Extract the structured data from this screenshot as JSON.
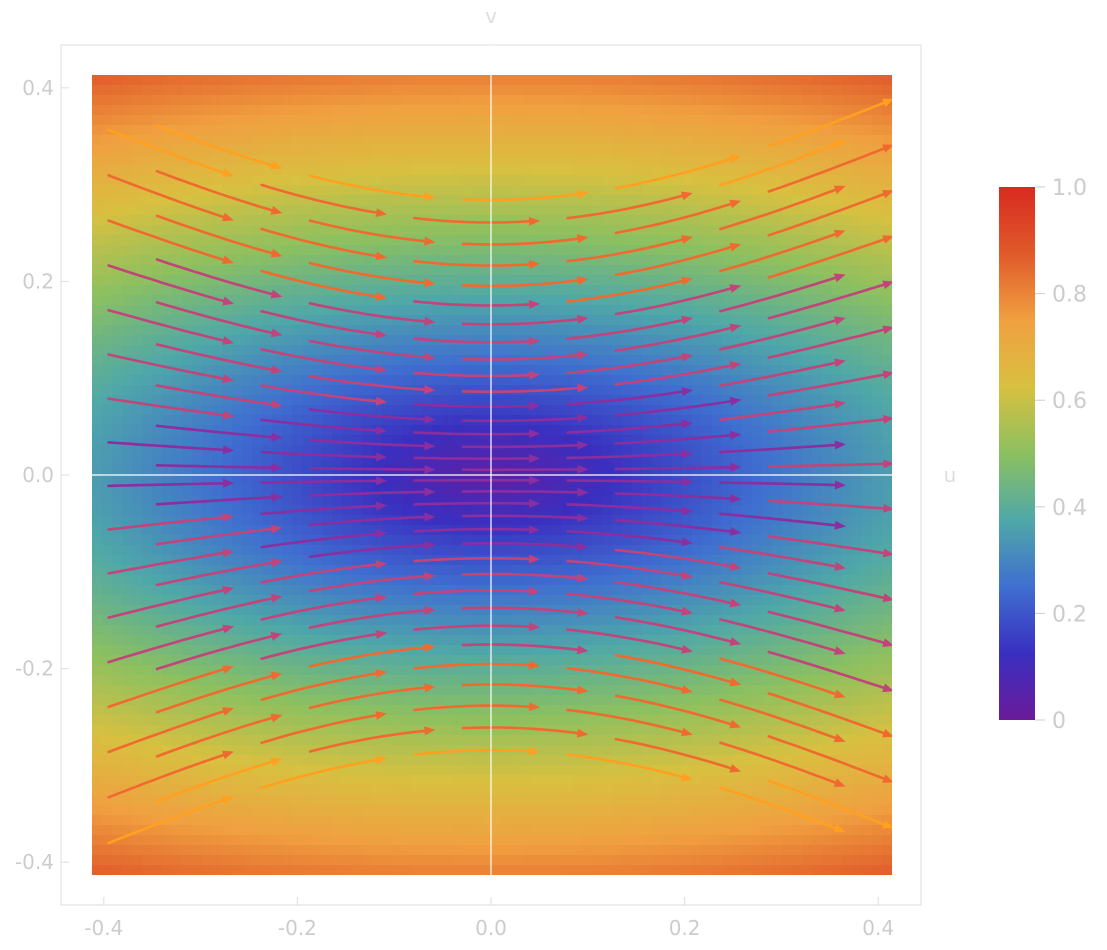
{
  "chart_data": {
    "type": "stream_density",
    "xlabel": "u",
    "ylabel": "v",
    "xlim": [
      -0.42,
      0.42
    ],
    "ylim": [
      -0.42,
      0.42
    ],
    "x_ticks": [
      "-0.4",
      "-0.2",
      "0.0",
      "0.2",
      "0.4"
    ],
    "x_tick_values": [
      -0.4,
      -0.2,
      0.0,
      0.2,
      0.4
    ],
    "y_ticks": [
      "-0.4",
      "-0.2",
      "0.0",
      "0.2",
      "0.4"
    ],
    "y_tick_values": [
      -0.4,
      -0.2,
      0.0,
      0.2,
      0.4
    ],
    "colorbar": {
      "ticks": [
        "0",
        "0.2",
        "0.4",
        "0.6",
        "0.8",
        "1.0"
      ],
      "tick_values": [
        0,
        0.2,
        0.4,
        0.6,
        0.8,
        1.0
      ],
      "range": [
        0,
        1
      ],
      "colors": [
        "#6a1b9a",
        "#3a2fc0",
        "#3f6fd0",
        "#4fa8a8",
        "#8cc060",
        "#d8c040",
        "#f0a040",
        "#e05a2a",
        "#d82a20"
      ]
    },
    "stream_field": {
      "u": "1",
      "v_amplitude": 0.35,
      "v_form": "-0.35 * v * cos(pi*u/0.84) style curvature",
      "arrow_color_by": "magnitude"
    },
    "colors": {
      "axis": "#dddddd",
      "tick_label": "#cccccc",
      "frame": "#dddddd"
    }
  }
}
